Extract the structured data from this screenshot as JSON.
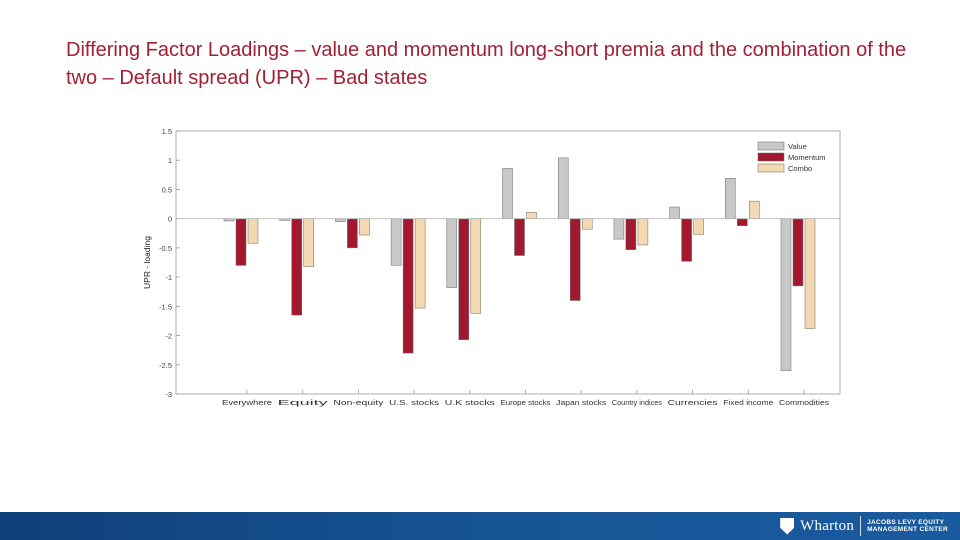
{
  "title": "Differing Factor Loadings – value and momentum long-short premia and the combination of the two – Default spread (UPR) – Bad states",
  "footer": {
    "brand": "Wharton",
    "center_line1": "JACOBS LEVY EQUITY",
    "center_line2": "MANAGEMENT CENTER"
  },
  "chart_data": {
    "type": "bar",
    "title": "",
    "xlabel": "",
    "ylabel": "UPR - loading",
    "ylim": [
      -3,
      1.5
    ],
    "yticks": [
      "1.5",
      "1",
      "0.5",
      "0",
      "-0.5",
      "-1",
      "-1.5",
      "-2",
      "-2.5",
      "-3"
    ],
    "grid": false,
    "legend": "top-right",
    "categories": [
      "Everywhere",
      "Equity",
      "Non-equity",
      "U.S. stocks",
      "U.K stocks",
      "Europe stocks",
      "Japan stocks",
      "Country indices",
      "Currencies",
      "Fixed income",
      "Commodities"
    ],
    "series": [
      {
        "name": "Value",
        "color": "#c8c8c8",
        "values": [
          -0.04,
          -0.03,
          -0.05,
          -0.8,
          -1.18,
          0.86,
          1.04,
          -0.35,
          0.2,
          0.69,
          -2.6
        ]
      },
      {
        "name": "Momentum",
        "color": "#a0192e",
        "values": [
          -0.8,
          -1.65,
          -0.5,
          -2.3,
          -2.07,
          -0.63,
          -1.4,
          -0.53,
          -0.73,
          -0.12,
          -1.15
        ]
      },
      {
        "name": "Combo",
        "color": "#f3d9b1",
        "values": [
          -0.42,
          -0.82,
          -0.28,
          -1.53,
          -1.62,
          0.11,
          -0.18,
          -0.45,
          -0.27,
          0.3,
          -1.88
        ]
      }
    ]
  }
}
